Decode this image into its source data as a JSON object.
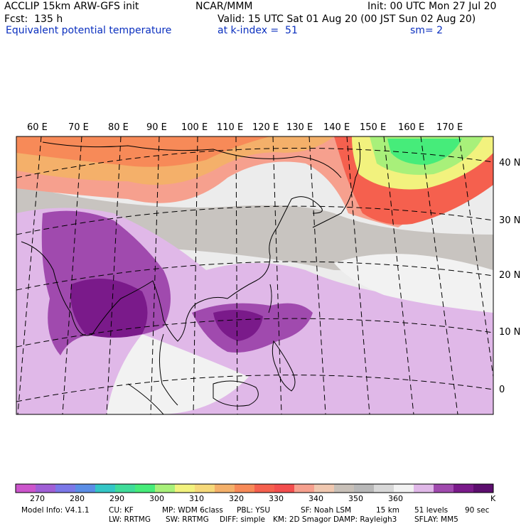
{
  "header": {
    "line1_left": "ACCLIP 15km ARW-GFS init",
    "line1_center": "NCAR/MMM",
    "line1_right": "Init: 00 UTC Mon 27 Jul 20",
    "line2_left": "Fcst:  135 h",
    "line2_right": "Valid: 15 UTC Sat 01 Aug 20 (00 JST Sun 02 Aug 20)",
    "line3_left": "Equivalent potential temperature",
    "line3_center": "at k-index =  51",
    "line3_right": "sm= 2"
  },
  "map": {
    "lon_labels": [
      "60 E",
      "70 E",
      "80 E",
      "90 E",
      "100 E",
      "110 E",
      "120 E",
      "130 E",
      "140 E",
      "150 E",
      "160 E",
      "170 E"
    ],
    "lat_labels": [
      "40 N",
      "30 N",
      "20 N",
      "10 N",
      "0"
    ]
  },
  "colorbar": {
    "colors": [
      "#cc55cc",
      "#a05fd6",
      "#7b78e8",
      "#5b8ee6",
      "#34c6c6",
      "#3fdc9a",
      "#46ec7a",
      "#a8f07a",
      "#f2f27e",
      "#f6d97a",
      "#f4b06a",
      "#f78a58",
      "#f5604e",
      "#f34e4e",
      "#f6a08e",
      "#f0c8b0",
      "#c8c0b8",
      "#b8b8b8",
      "#d8d8d8",
      "#f2f2f2",
      "#e0b8e8",
      "#a04aae",
      "#7a1a8a",
      "#5c0e6e"
    ],
    "tick_labels": [
      "270",
      "280",
      "290",
      "300",
      "310",
      "320",
      "330",
      "340",
      "350",
      "360"
    ],
    "unit": "K"
  },
  "footer": {
    "line1": [
      "Model Info: V4.1.1",
      "CU: KF",
      "MP: WDM 6class",
      "PBL: YSU",
      "SF: Noah LSM",
      "15 km",
      "51 levels",
      "90 sec"
    ],
    "line2": [
      "LW: RRTMG",
      "SW: RRTMG",
      "DIFF: simple",
      "KM: 2D Smagor",
      "DAMP: Rayleigh3",
      "SFLAY: MM5"
    ]
  }
}
